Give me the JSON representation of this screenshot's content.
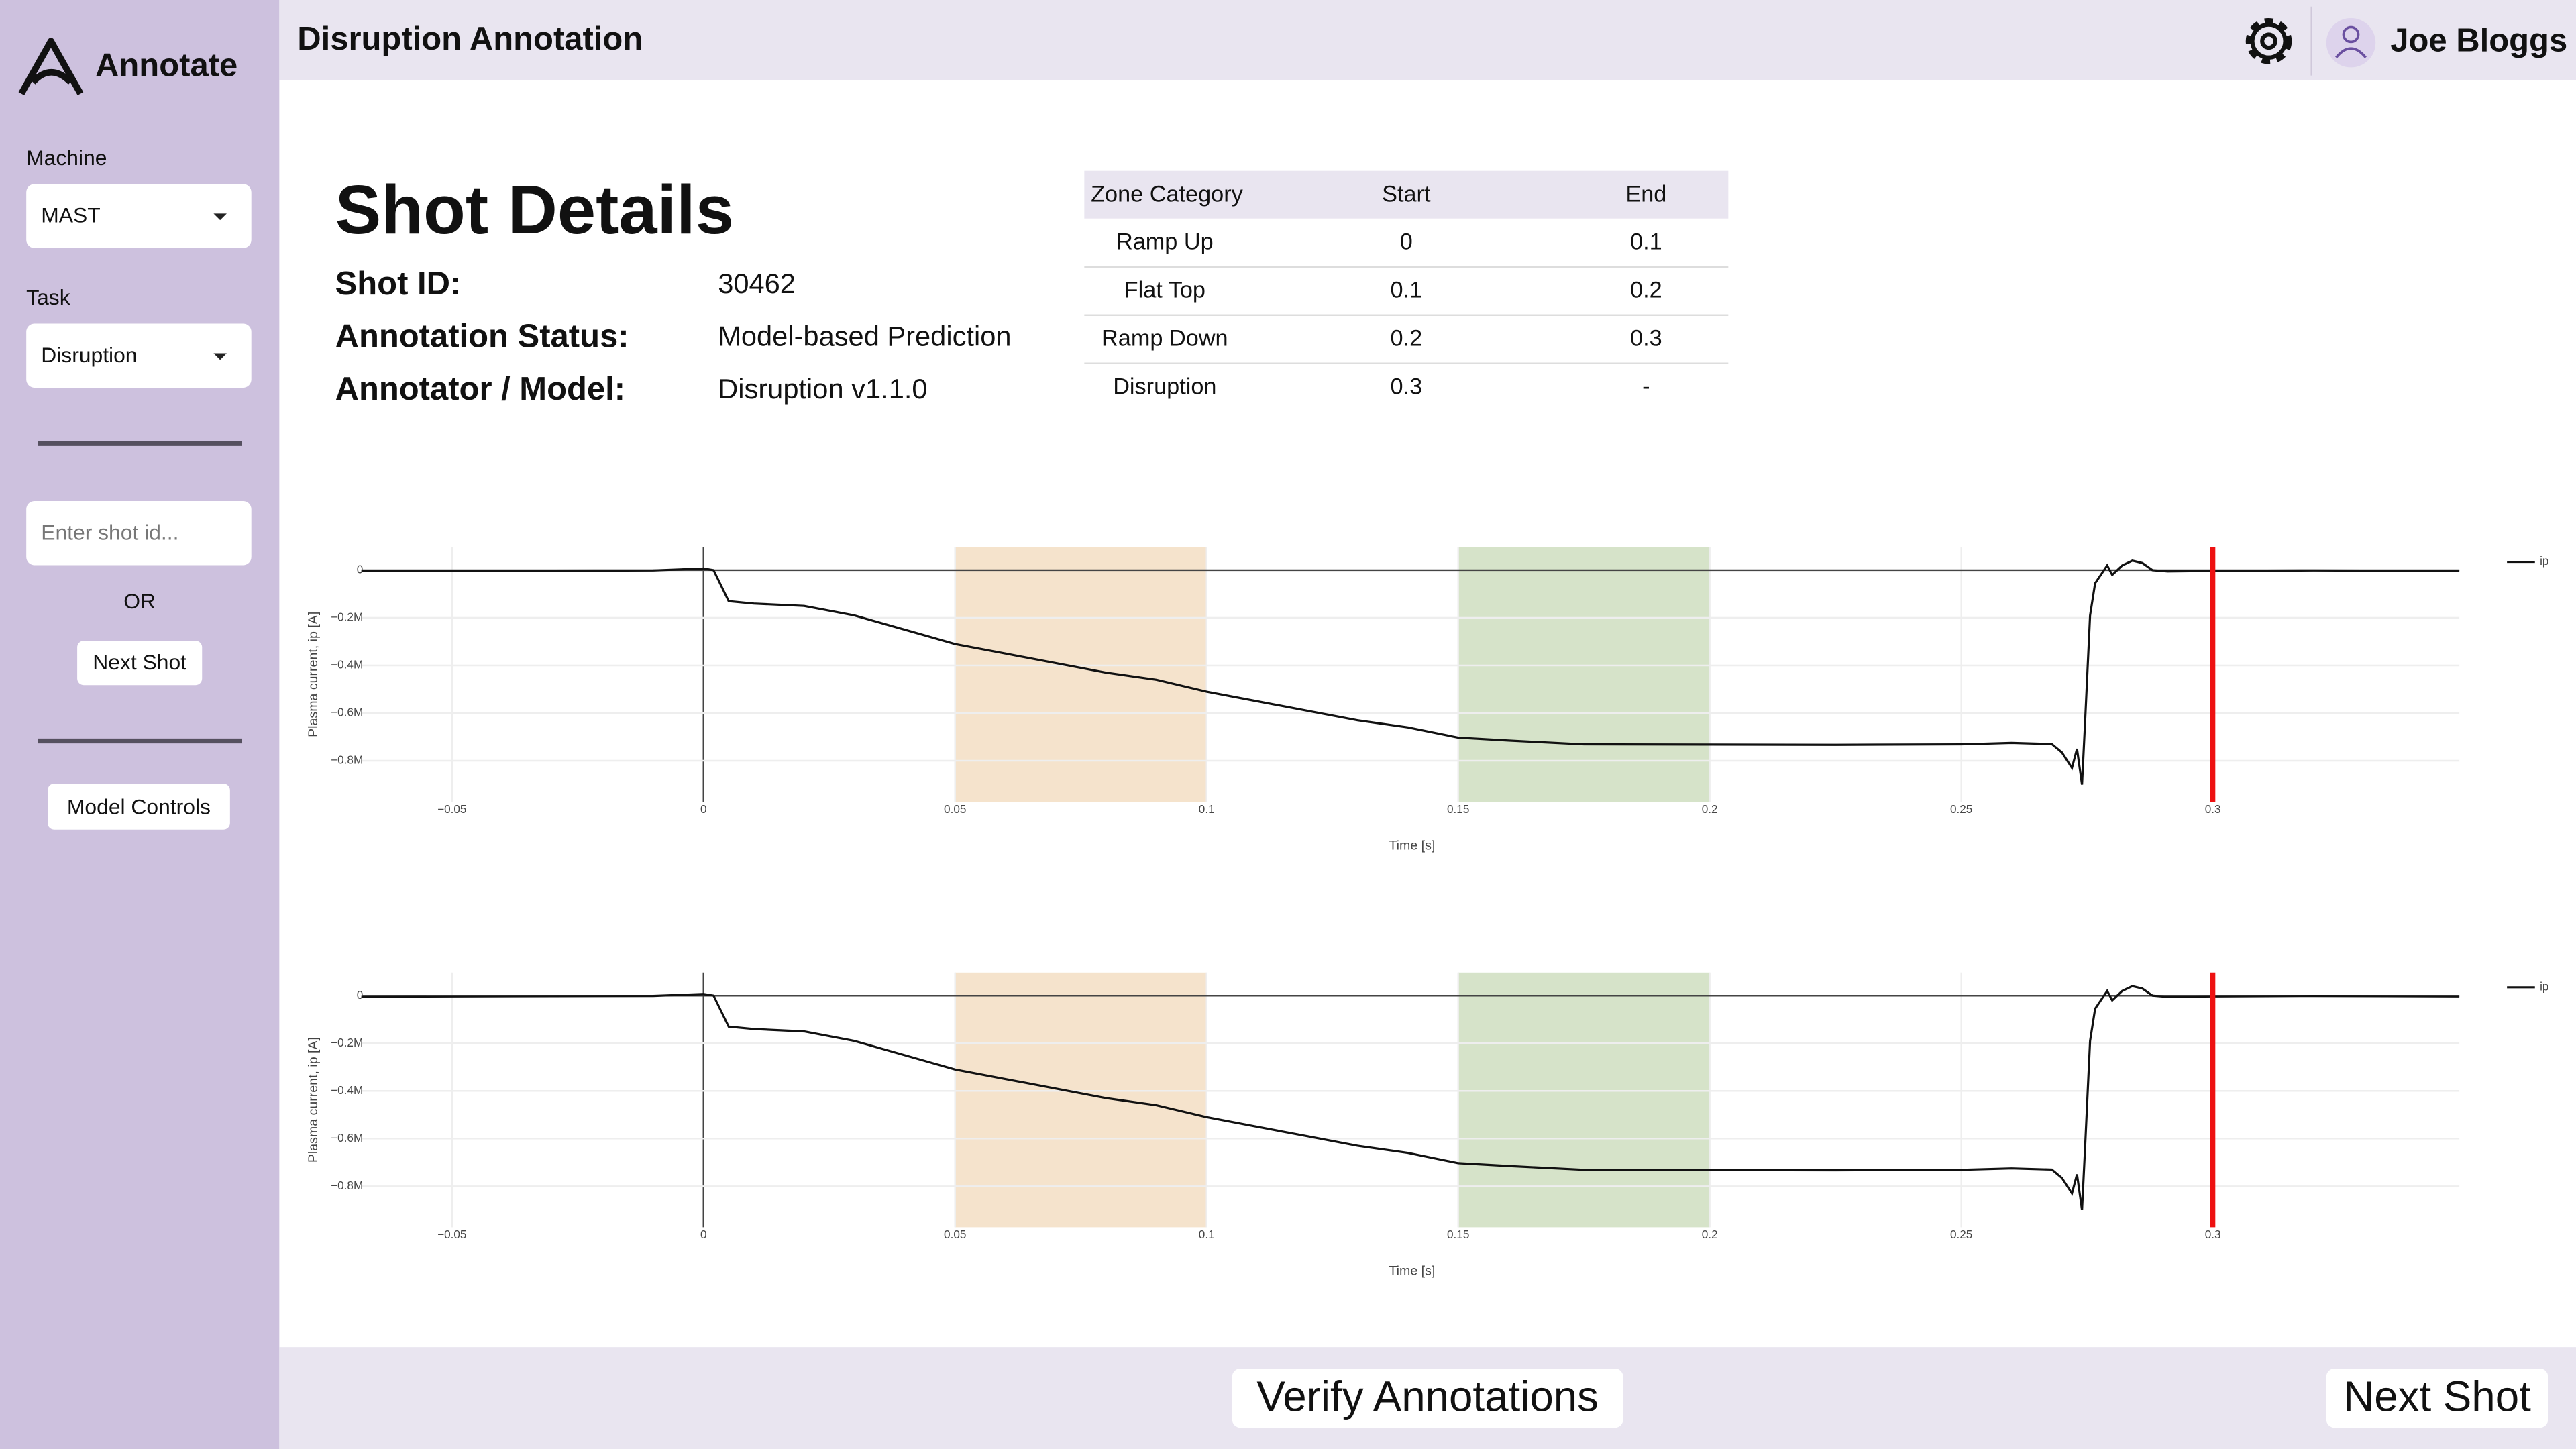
{
  "app": {
    "name": "Annotate",
    "page_title": "Disruption Annotation",
    "user": "Joe Bloggs"
  },
  "sidebar": {
    "machine_label": "Machine",
    "machine": "MAST",
    "task_label": "Task",
    "task": "Disruption",
    "shot_placeholder": "Enter shot id...",
    "or": "OR",
    "next_button": "Next Shot",
    "model_button": "Model Controls"
  },
  "shot_details": {
    "title": "Shot Details",
    "fields": [
      {
        "label": "Shot ID:",
        "value": 30462
      },
      {
        "label": "Annotation Status:",
        "value": "Model-based Prediction"
      },
      {
        "label": "Annotator / Model:",
        "value": "Disruption v1.1.0"
      }
    ]
  },
  "zone_table": {
    "columns": [
      "Zone Category",
      "Start",
      "End"
    ],
    "rows": [
      [
        "Ramp Up",
        0,
        0.1
      ],
      [
        "Flat Top",
        0.1,
        0.2
      ],
      [
        "Ramp Down",
        0.2,
        0.3
      ],
      [
        "Disruption",
        0.3,
        "-"
      ]
    ]
  },
  "chart_data": [
    {
      "type": "line",
      "x_label": "Time [s]",
      "y_label": "Plasma current, ip [A]",
      "grid": true,
      "xlim": [
        -0.068,
        0.349
      ],
      "ylim": [
        -972000,
        97000
      ],
      "xticks": [
        {
          "value": -0.05,
          "label": "−0.05"
        },
        0,
        0.05,
        0.1,
        0.15,
        0.2,
        0.25,
        0.3
      ],
      "yticks": [
        0,
        {
          "value": -200000,
          "label": "−0.2M"
        },
        {
          "value": -400000,
          "label": "−0.4M"
        },
        {
          "value": -600000,
          "label": "−0.6M"
        },
        {
          "value": -800000,
          "label": "−0.8M"
        }
      ],
      "zones": [
        {
          "x0": 0.05,
          "x1": 0.1,
          "color": "#f5e3cc"
        },
        {
          "x0": 0.15,
          "x1": 0.2,
          "color": "#d6e3c9"
        }
      ],
      "marker": {
        "x": 0.3,
        "color": "#ee1111"
      },
      "series": [
        {
          "name": "ip",
          "color": "#111111",
          "x": [
            -0.068,
            -0.05,
            -0.03,
            -0.01,
            0,
            0.002,
            0.005,
            0.01,
            0.02,
            0.03,
            0.04,
            0.05,
            0.06,
            0.07,
            0.08,
            0.09,
            0.1,
            0.11,
            0.12,
            0.13,
            0.14,
            0.15,
            0.16,
            0.175,
            0.2,
            0.225,
            0.25,
            0.26,
            0.268,
            0.27,
            0.272,
            0.273,
            0.274,
            0.2746,
            0.2756,
            0.2766,
            0.279,
            0.28,
            0.282,
            0.284,
            0.286,
            0.288,
            0.291,
            0.3,
            0.32,
            0.349
          ],
          "values": [
            -4000,
            -3000,
            -2000,
            -1000,
            7000,
            0,
            -130000,
            -140000,
            -150000,
            -190000,
            -250000,
            -310000,
            -350000,
            -390000,
            -430000,
            -460000,
            -510000,
            -550000,
            -590000,
            -630000,
            -660000,
            -703000,
            -715000,
            -731000,
            -732000,
            -733000,
            -731000,
            -725000,
            -730000,
            -765000,
            -830000,
            -750000,
            -900000,
            -640000,
            -190000,
            -55000,
            20000,
            -20000,
            20000,
            40000,
            30000,
            0,
            -5000,
            -3000,
            -1000,
            -3000
          ]
        }
      ]
    },
    {
      "type": "line",
      "x_label": "Time [s]",
      "y_label": "Plasma current, ip [A]",
      "grid": true,
      "xlim": [
        -0.068,
        0.349
      ],
      "ylim": [
        -972000,
        97000
      ],
      "xticks": [
        {
          "value": -0.05,
          "label": "−0.05"
        },
        0,
        0.05,
        0.1,
        0.15,
        0.2,
        0.25,
        0.3
      ],
      "yticks": [
        0,
        {
          "value": -200000,
          "label": "−0.2M"
        },
        {
          "value": -400000,
          "label": "−0.4M"
        },
        {
          "value": -600000,
          "label": "−0.6M"
        },
        {
          "value": -800000,
          "label": "−0.8M"
        }
      ],
      "zones": [
        {
          "x0": 0.05,
          "x1": 0.1,
          "color": "#f5e3cc"
        },
        {
          "x0": 0.15,
          "x1": 0.2,
          "color": "#d6e3c9"
        }
      ],
      "marker": {
        "x": 0.3,
        "color": "#ee1111"
      },
      "series": [
        {
          "name": "ip",
          "color": "#111111",
          "x": [
            -0.068,
            -0.05,
            -0.03,
            -0.01,
            0,
            0.002,
            0.005,
            0.01,
            0.02,
            0.03,
            0.04,
            0.05,
            0.06,
            0.07,
            0.08,
            0.09,
            0.1,
            0.11,
            0.12,
            0.13,
            0.14,
            0.15,
            0.16,
            0.175,
            0.2,
            0.225,
            0.25,
            0.26,
            0.268,
            0.27,
            0.272,
            0.273,
            0.274,
            0.2746,
            0.2756,
            0.2766,
            0.279,
            0.28,
            0.282,
            0.284,
            0.286,
            0.288,
            0.291,
            0.3,
            0.32,
            0.349
          ],
          "values": [
            -4000,
            -3000,
            -2000,
            -1000,
            7000,
            0,
            -130000,
            -140000,
            -150000,
            -190000,
            -250000,
            -310000,
            -350000,
            -390000,
            -430000,
            -460000,
            -510000,
            -550000,
            -590000,
            -630000,
            -660000,
            -703000,
            -715000,
            -731000,
            -732000,
            -733000,
            -731000,
            -725000,
            -730000,
            -765000,
            -830000,
            -750000,
            -900000,
            -640000,
            -190000,
            -55000,
            20000,
            -20000,
            20000,
            40000,
            30000,
            0,
            -5000,
            -3000,
            -1000,
            -3000
          ]
        }
      ]
    }
  ],
  "footer": {
    "verify_button": "Verify Annotations",
    "next_button": "Next Shot"
  }
}
